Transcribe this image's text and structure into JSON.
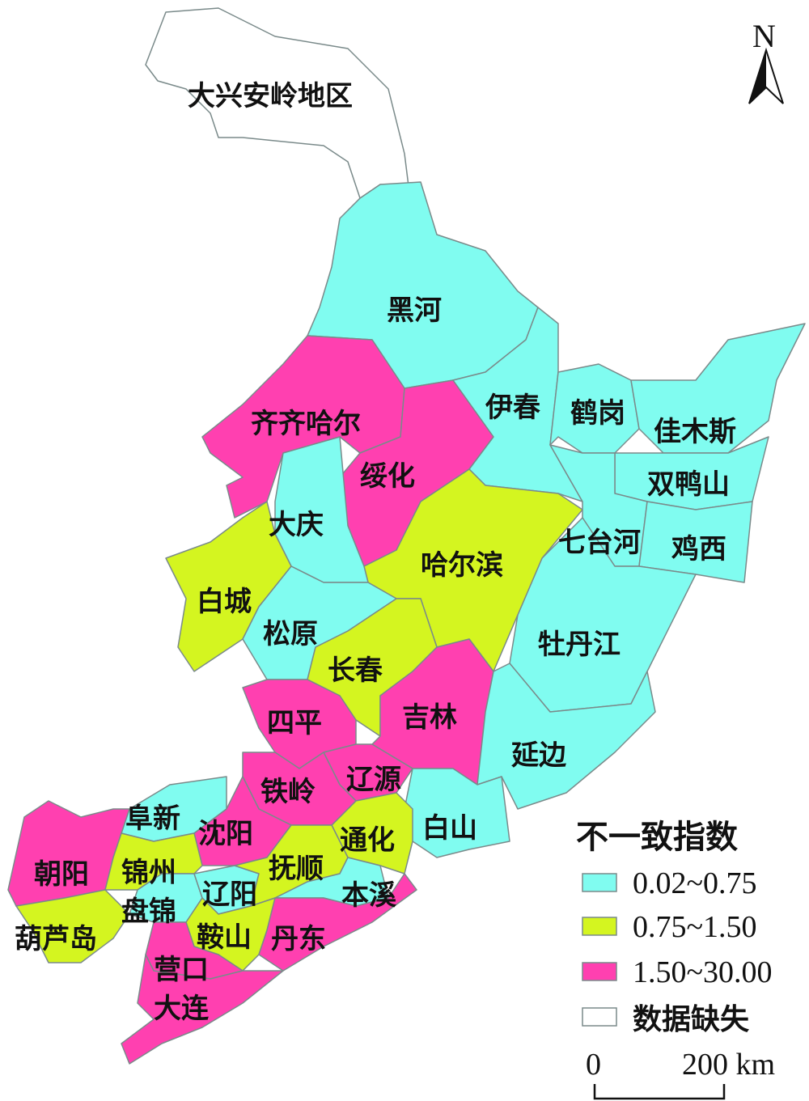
{
  "north_arrow": {
    "label": "N"
  },
  "colors": {
    "low": "#80FCF0",
    "mid": "#D4F520",
    "high": "#FF40B0",
    "missing": "#FFFFFF"
  },
  "regions": {
    "daxinganling": {
      "name": "大兴安岭地区",
      "category": "missing"
    },
    "heihe": {
      "name": "黑河",
      "category": "low"
    },
    "qiqihar": {
      "name": "齐齐哈尔",
      "category": "high"
    },
    "suihua": {
      "name": "绥化",
      "category": "high"
    },
    "yichun": {
      "name": "伊春",
      "category": "low"
    },
    "hegang": {
      "name": "鹤岗",
      "category": "low"
    },
    "jiamusi": {
      "name": "佳木斯",
      "category": "low"
    },
    "shuangyashan": {
      "name": "双鸭山",
      "category": "low"
    },
    "qitaihe": {
      "name": "七台河",
      "category": "low"
    },
    "jixi": {
      "name": "鸡西",
      "category": "low"
    },
    "mudanjiang": {
      "name": "牡丹江",
      "category": "low"
    },
    "harbin": {
      "name": "哈尔滨",
      "category": "mid"
    },
    "daqing": {
      "name": "大庆",
      "category": "low"
    },
    "baicheng": {
      "name": "白城",
      "category": "mid"
    },
    "songyuan": {
      "name": "松原",
      "category": "low"
    },
    "changchun": {
      "name": "长春",
      "category": "mid"
    },
    "jilin": {
      "name": "吉林",
      "category": "high"
    },
    "yanbian": {
      "name": "延边",
      "category": "low"
    },
    "siping": {
      "name": "四平",
      "category": "high"
    },
    "liaoyuan": {
      "name": "辽源",
      "category": "high"
    },
    "baishan": {
      "name": "白山",
      "category": "low"
    },
    "tonghua": {
      "name": "通化",
      "category": "mid"
    },
    "tieling": {
      "name": "铁岭",
      "category": "high"
    },
    "fuxin": {
      "name": "阜新",
      "category": "low"
    },
    "shenyang": {
      "name": "沈阳",
      "category": "high"
    },
    "chaoyang": {
      "name": "朝阳",
      "category": "high"
    },
    "jinzhou": {
      "name": "锦州",
      "category": "mid"
    },
    "panjin": {
      "name": "盘锦",
      "category": "low"
    },
    "huludao": {
      "name": "葫芦岛",
      "category": "mid"
    },
    "liaoyang": {
      "name": "辽阳",
      "category": "low"
    },
    "fushun": {
      "name": "抚顺",
      "category": "mid"
    },
    "benxi": {
      "name": "本溪",
      "category": "low"
    },
    "anshan": {
      "name": "鞍山",
      "category": "mid"
    },
    "dandong": {
      "name": "丹东",
      "category": "high"
    },
    "yingkou": {
      "name": "营口",
      "category": "high"
    },
    "dalian": {
      "name": "大连",
      "category": "high"
    }
  },
  "legend": {
    "title": "不一致指数",
    "items": [
      {
        "label": "0.02~0.75",
        "category": "low"
      },
      {
        "label": "0.75~1.50",
        "category": "mid"
      },
      {
        "label": "1.50~30.00",
        "category": "high"
      },
      {
        "label": "数据缺失",
        "category": "missing"
      }
    ]
  },
  "scale_bar": {
    "start": "0",
    "end": "200 km"
  }
}
